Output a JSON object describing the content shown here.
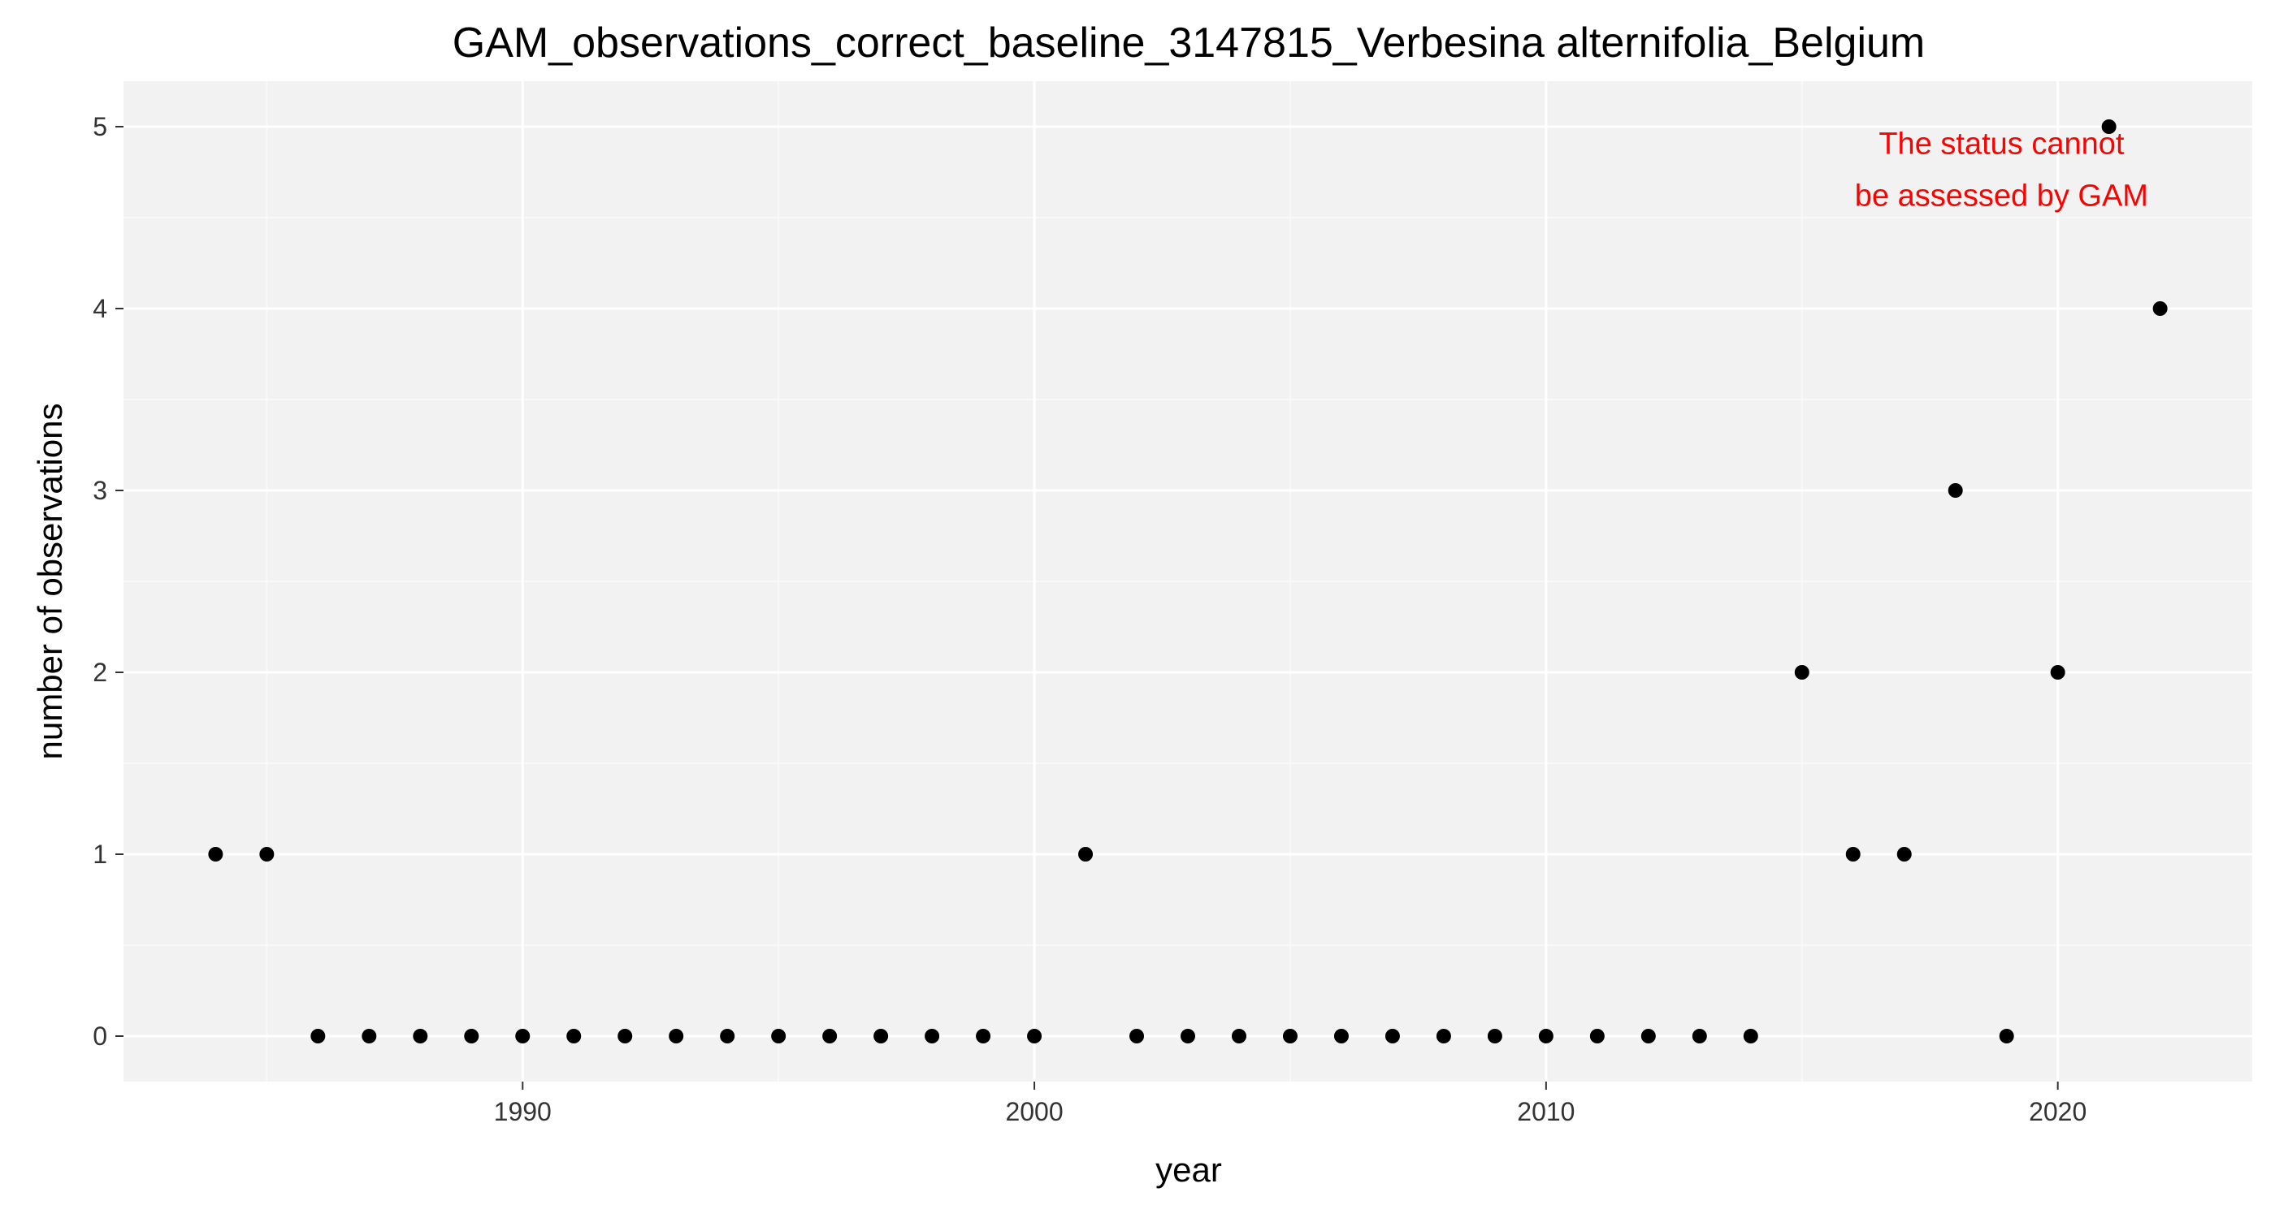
{
  "chart_data": {
    "type": "scatter",
    "title": "GAM_observations_correct_baseline_3147815_Verbesina alternifolia_Belgium",
    "xlabel": "year",
    "ylabel": "number of observations",
    "xlim": [
      1982.2,
      1984.6
    ],
    "ylim": [
      -0.25,
      5.25
    ],
    "x_ticks": [
      1990,
      2000,
      2010,
      2020
    ],
    "x_tick_labels": [
      "1990",
      "2000",
      "2010",
      "2020"
    ],
    "y_ticks": [
      0,
      1,
      2,
      3,
      4,
      5
    ],
    "y_tick_labels": [
      "0",
      "1",
      "2",
      "3",
      "4",
      "5"
    ],
    "grid": true,
    "series": [
      {
        "x": [
          1984,
          1985,
          1986,
          1987,
          1988,
          1989,
          1990,
          1991,
          1992,
          1993,
          1994,
          1995,
          1996,
          1997,
          1998,
          1999,
          2000,
          2001,
          2002,
          2003,
          2004,
          2005,
          2006,
          2007,
          2008,
          2009,
          2010,
          2011,
          2012,
          2013,
          2014,
          2015,
          2016,
          2017,
          2018,
          2019,
          2020,
          2021,
          2022
        ],
        "y": [
          1,
          1,
          0,
          0,
          0,
          0,
          0,
          0,
          0,
          0,
          0,
          0,
          0,
          0,
          0,
          0,
          0,
          1,
          0,
          0,
          0,
          0,
          0,
          0,
          0,
          0,
          0,
          0,
          0,
          0,
          0,
          2,
          1,
          1,
          3,
          0,
          2,
          5,
          4
        ],
        "color": "#000000"
      }
    ],
    "annotations": [
      {
        "lines": [
          "The status cannot",
          "be assessed by GAM"
        ],
        "x": 2018.9,
        "y": 4.85,
        "color": "#ff0000"
      }
    ],
    "colors": {
      "panel_background": "#f2f2f2",
      "grid_major": "#ffffff",
      "grid_minor": "#f9f9f9",
      "tick_mark": "#333333",
      "point": "#000000"
    }
  }
}
